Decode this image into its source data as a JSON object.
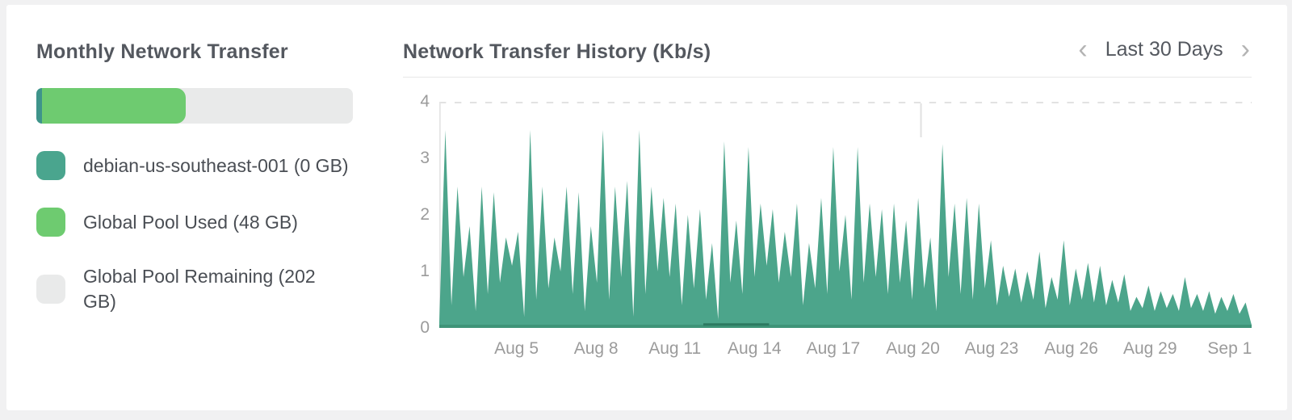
{
  "page": {
    "bg_color": "#f1f1f2",
    "card_bg_color": "#ffffff"
  },
  "left_panel": {
    "title": "Monthly Network Transfer",
    "bar": {
      "track_color": "#e9eaea",
      "segments": [
        {
          "name": "debian-us-southeast-001",
          "color": "#3e948b",
          "width_pct": 1.8
        },
        {
          "name": "Global Pool Used",
          "color": "#6ecb70",
          "width_pct": 45.4
        }
      ]
    },
    "legend": [
      {
        "label": "debian-us-southeast-001 (0 GB)",
        "color": "#4aa58e"
      },
      {
        "label": "Global Pool Used (48 GB)",
        "color": "#6ecb70"
      },
      {
        "label": "Global Pool Remaining (202 GB)",
        "color": "#e9eaea"
      }
    ]
  },
  "chart_panel": {
    "title": "Network Transfer History (Kb/s)",
    "pager": {
      "prev_icon": "‹",
      "label": "Last 30 Days",
      "next_icon": "›"
    }
  },
  "chart_data": {
    "type": "area",
    "title": "Network Transfer History (Kb/s)",
    "ylabel": "Kb/s",
    "xlabel": "",
    "ylim": [
      0,
      4
    ],
    "yticks": [
      0,
      1,
      2,
      3,
      4
    ],
    "grid": "single dashed gridline at y=4 only",
    "legend_position": "external-left-panel",
    "axis_color": "#e4e4e4",
    "gridline_color": "#d9d9d9",
    "crosshair": {
      "pos": 0.593,
      "color": "#e2e2e2"
    },
    "xticks": [
      {
        "label": "Aug 5",
        "pos": 0.095
      },
      {
        "label": "Aug 8",
        "pos": 0.193
      },
      {
        "label": "Aug 11",
        "pos": 0.29
      },
      {
        "label": "Aug 14",
        "pos": 0.388
      },
      {
        "label": "Aug 17",
        "pos": 0.485
      },
      {
        "label": "Aug 20",
        "pos": 0.583
      },
      {
        "label": "Aug 23",
        "pos": 0.68
      },
      {
        "label": "Aug 26",
        "pos": 0.778
      },
      {
        "label": "Aug 29",
        "pos": 0.875
      },
      {
        "label": "Sep 1",
        "pos": 0.973
      }
    ],
    "series": [
      {
        "name": "Global Pool Used",
        "color": "#4ca58b",
        "edge_color": "#3f9478",
        "values": [
          0.1,
          3.5,
          0.4,
          2.5,
          0.9,
          1.8,
          0.3,
          2.5,
          0.6,
          2.4,
          0.8,
          1.6,
          1.1,
          1.7,
          0.2,
          3.5,
          0.5,
          2.5,
          0.7,
          1.6,
          1.0,
          2.5,
          0.6,
          2.4,
          0.3,
          1.8,
          0.8,
          3.5,
          0.5,
          2.5,
          0.9,
          2.6,
          0.2,
          3.5,
          0.6,
          2.5,
          1.0,
          2.3,
          0.9,
          2.2,
          0.4,
          2.0,
          0.7,
          2.1,
          0.5,
          1.5,
          0.15,
          3.3,
          0.8,
          1.9,
          0.6,
          3.2,
          0.9,
          2.2,
          1.1,
          2.1,
          0.8,
          1.7,
          0.9,
          2.2,
          0.4,
          1.5,
          0.7,
          2.3,
          0.6,
          3.2,
          1.0,
          2.0,
          0.5,
          3.2,
          0.8,
          2.2,
          0.9,
          2.1,
          0.6,
          2.2,
          0.8,
          1.9,
          0.5,
          2.3,
          0.7,
          1.6,
          0.3,
          3.25,
          0.9,
          2.2,
          0.6,
          2.3,
          0.5,
          2.2,
          0.7,
          1.55,
          0.4,
          1.1,
          0.55,
          1.05,
          0.45,
          1.0,
          0.5,
          1.35,
          0.35,
          0.9,
          0.5,
          1.55,
          0.4,
          1.05,
          0.5,
          1.15,
          0.45,
          1.1,
          0.4,
          0.85,
          0.45,
          0.95,
          0.3,
          0.55,
          0.35,
          0.75,
          0.3,
          0.65,
          0.35,
          0.6,
          0.3,
          0.9,
          0.35,
          0.6,
          0.3,
          0.65,
          0.25,
          0.55,
          0.3,
          0.6,
          0.25,
          0.45,
          0.05
        ]
      },
      {
        "name": "debian-us-southeast-001",
        "color": "#2c7a61",
        "segment": {
          "from": 0.325,
          "to": 0.406,
          "value": 0.06
        }
      }
    ]
  }
}
